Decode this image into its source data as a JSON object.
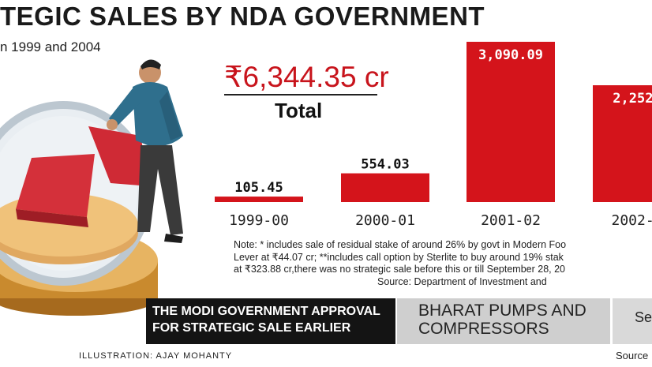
{
  "header": {
    "title": "TEGIC SALES BY NDA GOVERNMENT",
    "subtitle": "n 1999 and 2004"
  },
  "total": {
    "value": "₹6,344.35 cr",
    "label": "Total"
  },
  "chart_data": {
    "type": "bar",
    "categories": [
      "1999-00",
      "2000-01",
      "2001-02",
      "2002-0"
    ],
    "values": [
      105.45,
      554.03,
      3090.09,
      2252.0
    ],
    "value_labels": [
      "105.45",
      "554.03",
      "3,090.09",
      "2,252."
    ],
    "ylim": [
      0,
      3500
    ],
    "bar_color": "#d4141b",
    "title": "",
    "xlabel": "",
    "ylabel": ""
  },
  "note": {
    "lines": [
      "Note: * includes sale of residual stake of around 26% by govt in Modern Foo",
      "Lever at ₹44.07 cr; **includes call option by Sterlite to buy around 19% stak",
      "at ₹323.88 cr,there was no strategic sale before this or till September 28, 20",
      "Source: Department of Investment and"
    ]
  },
  "banner": {
    "line1": "THE MODI GOVERNMENT APPROVAL",
    "line2": "FOR STRATEGIC SALE EARLIER",
    "company_line1": "BHARAT PUMPS AND",
    "company_line2": "COMPRESSORS",
    "date_partial": "Sep"
  },
  "footer": {
    "illustration": "ILLUSTRATION: AJAY MOHANTY",
    "source": "Source"
  },
  "colors": {
    "accent_red": "#d4141b",
    "banner_dark": "#141414",
    "banner_grey": "#cfcfcf"
  }
}
